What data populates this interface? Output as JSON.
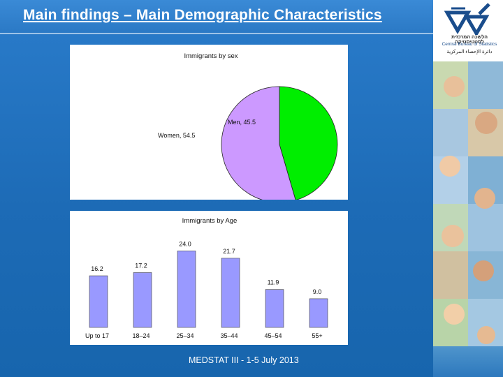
{
  "slide": {
    "title": "Main findings – Main Demographic Characteristics",
    "footer": "MEDSTAT III - 1-5 July 2013"
  },
  "logo": {
    "hebrew": "הלשכה המרכזית לסטטיסטיקה",
    "english": "Central Bureau of Statistics",
    "arabic": "دائرة الإحصاء المركزية",
    "icon": "cbs-logo-icon"
  },
  "colors": {
    "background": "#1f6fb8",
    "men": "#00ee00",
    "women": "#cc99ff",
    "bars": "#9999ff"
  },
  "chart_data": [
    {
      "type": "pie",
      "title": "Immigrants by sex",
      "labels": [
        "Men",
        "Women"
      ],
      "values": [
        45.5,
        54.5
      ],
      "slice_labels": [
        "Men, 45.5",
        "Women, 54.5"
      ],
      "colors": [
        "#00ee00",
        "#cc99ff"
      ]
    },
    {
      "type": "bar",
      "title": "Immigrants by Age",
      "categories": [
        "Up to 17",
        "18–24",
        "25–34",
        "35–44",
        "45–54",
        "55+"
      ],
      "values": [
        16.2,
        17.2,
        24.0,
        21.7,
        11.9,
        9.0
      ],
      "value_labels": [
        "16.2",
        "17.2",
        "24.0",
        "21.7",
        "11.9",
        "9.0"
      ],
      "ylim": [
        0,
        30
      ],
      "grid": false,
      "bar_color": "#9999ff"
    }
  ]
}
